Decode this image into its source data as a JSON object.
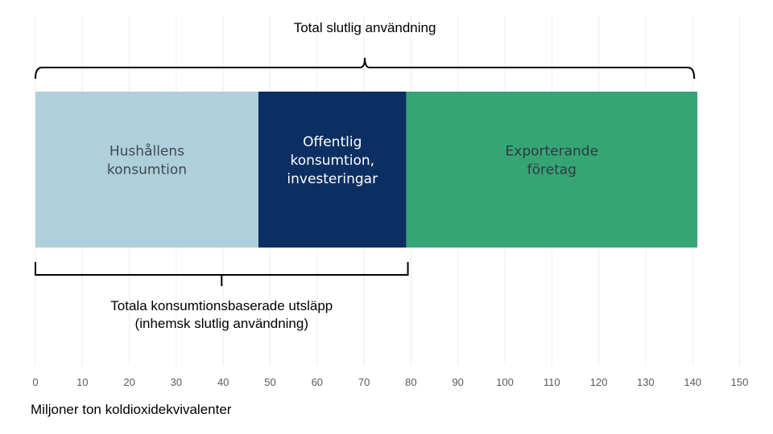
{
  "chart_data": {
    "type": "bar",
    "orientation": "horizontal-stacked",
    "xlabel": "Miljoner ton koldioxidekvivalenter",
    "xlim": [
      0,
      150
    ],
    "x_ticks": [
      0,
      10,
      20,
      30,
      40,
      50,
      60,
      70,
      80,
      90,
      100,
      110,
      120,
      130,
      140,
      150
    ],
    "grid": true,
    "series": [
      {
        "name": "Hushållens konsumtion",
        "lines": [
          "Hushållens",
          "konsumtion"
        ],
        "start": 0,
        "value": 47.5,
        "color": "#aecfdb",
        "text_color": "#3f4a52"
      },
      {
        "name": "Offentlig konsumtion, investeringar",
        "lines": [
          "Offentlig",
          "konsumtion,",
          "investeringar"
        ],
        "start": 47.5,
        "value": 31.5,
        "color": "#0b2f63",
        "text_color": "#ffffff"
      },
      {
        "name": "Exporterande företag",
        "lines": [
          "Exporterande",
          "företag"
        ],
        "start": 79,
        "value": 62,
        "color": "#35a576",
        "text_color": "#2f3a3f"
      }
    ],
    "annotations": [
      {
        "id": "total-final-use",
        "lines": [
          "Total slutlig användning"
        ],
        "from": 0,
        "to": 140,
        "position": "above"
      },
      {
        "id": "consumption-based",
        "lines": [
          "Totala konsumtionsbaserade utsläpp",
          "(inhemsk slutlig användning)"
        ],
        "from": 0,
        "to": 79,
        "position": "below"
      }
    ]
  }
}
